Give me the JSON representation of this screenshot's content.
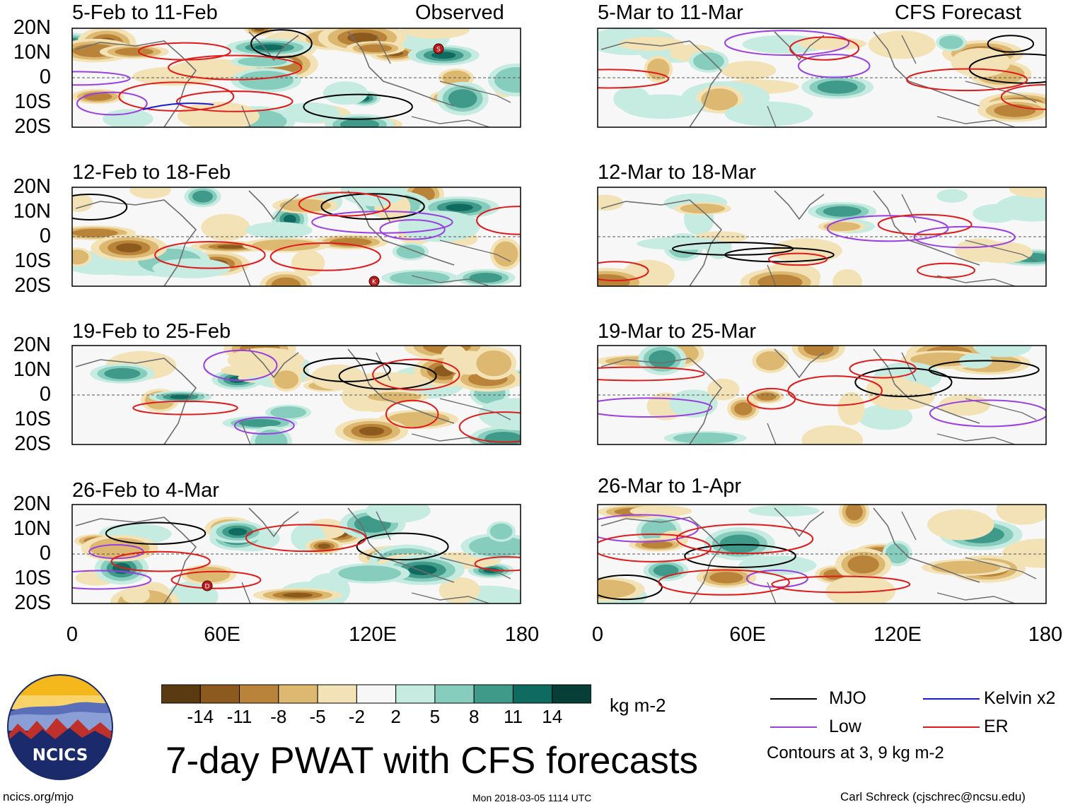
{
  "title": "7-day PWAT with CFS forecasts",
  "units": "kg m-2",
  "column_titles": {
    "observed": "Observed",
    "forecast": "CFS Forecast"
  },
  "panels_observed": [
    "5-Feb to 11-Feb",
    "12-Feb to 18-Feb",
    "19-Feb to 25-Feb",
    "26-Feb to 4-Mar"
  ],
  "panels_forecast": [
    "5-Mar to 11-Mar",
    "12-Mar to 18-Mar",
    "19-Mar to 25-Mar",
    "26-Mar to 1-Apr"
  ],
  "lat_labels": [
    "20N",
    "10N",
    "0",
    "10S",
    "20S"
  ],
  "lon_labels": [
    "0",
    "60E",
    "120E",
    "180"
  ],
  "colorbar": {
    "ticks": [
      "-14",
      "-11",
      "-8",
      "-5",
      "-2",
      "2",
      "5",
      "8",
      "11",
      "14"
    ],
    "colors": [
      "#5a3a10",
      "#8c5a1c",
      "#b9843a",
      "#dcb870",
      "#f3e2b6",
      "#f7f7f7",
      "#c6ebe1",
      "#86cdbd",
      "#3f9a89",
      "#0f6b5f",
      "#073f38"
    ]
  },
  "legend": {
    "items": [
      {
        "label": "MJO",
        "color": "#000000"
      },
      {
        "label": "Kelvin x2",
        "color": "#1a1ad6"
      },
      {
        "label": "Low",
        "color": "#9a3fe0"
      },
      {
        "label": "ER",
        "color": "#e01a1a"
      }
    ],
    "note": "Contours at 3, 9 kg m-2"
  },
  "logo_text": "NCICS",
  "footer": {
    "left": "ncics.org/mjo",
    "center": "Mon 2018-03-05 1114 UTC",
    "right": "Carl Schreck (cjschrec@ncsu.edu)"
  },
  "storm_markers": [
    "S",
    "K",
    "D"
  ],
  "colors": {
    "brown": "#8c5a1c",
    "teal": "#0f6b5f",
    "coast": "#6e6e6e"
  }
}
